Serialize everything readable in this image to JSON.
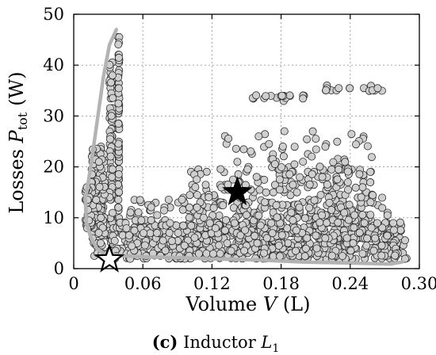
{
  "chart_data": {
    "type": "scatter",
    "xlabel_prefix": "Volume",
    "xlabel_symbol": "V",
    "xlabel_unit": "(L)",
    "ylabel_prefix": "Losses",
    "ylabel_symbol": "P",
    "ylabel_subscript": "tot",
    "ylabel_unit": "(W)",
    "xlim": [
      0,
      0.3
    ],
    "ylim": [
      0,
      50
    ],
    "xticks": [
      0,
      0.06,
      0.12,
      0.18,
      0.24,
      0.3
    ],
    "xtick_labels": [
      "0",
      "0.06",
      "0.12",
      "0.18",
      "0.24",
      "0.30"
    ],
    "yticks": [
      0,
      10,
      20,
      30,
      40,
      50
    ],
    "ytick_labels": [
      "0",
      "10",
      "20",
      "30",
      "40",
      "50"
    ],
    "grid": true,
    "caption_label": "(c)",
    "caption_text": "Inductor",
    "caption_symbol": "L",
    "caption_subscript": "1",
    "marker_color": "#cfcfcf",
    "edge_color": "#2a2a2a",
    "pareto_color": "#b3b3b3",
    "pareto_front": [
      [
        0.037,
        47
      ],
      [
        0.031,
        44
      ],
      [
        0.026,
        38
      ],
      [
        0.021,
        30
      ],
      [
        0.016,
        22
      ],
      [
        0.012,
        16
      ],
      [
        0.01,
        14
      ],
      [
        0.011,
        9
      ],
      [
        0.015,
        6
      ],
      [
        0.02,
        4
      ],
      [
        0.026,
        3
      ],
      [
        0.04,
        2.6
      ],
      [
        0.06,
        2.3
      ],
      [
        0.08,
        2.2
      ],
      [
        0.1,
        2.1
      ],
      [
        0.12,
        1.9
      ],
      [
        0.14,
        1.8
      ],
      [
        0.16,
        1.7
      ],
      [
        0.18,
        1.5
      ],
      [
        0.2,
        1.3
      ],
      [
        0.22,
        1.2
      ],
      [
        0.24,
        1.1
      ],
      [
        0.26,
        1.0
      ],
      [
        0.275,
        0.9
      ],
      [
        0.285,
        1.3
      ]
    ],
    "clusters": [
      {
        "x": [
          0.0385,
          0.0395
        ],
        "y": [
          10,
          46
        ],
        "n": 80
      },
      {
        "x": [
          0.031,
          0.034
        ],
        "y": [
          2.5,
          41
        ],
        "n": 90
      },
      {
        "x": [
          0.015,
          0.027
        ],
        "y": [
          2.5,
          24
        ],
        "n": 120
      },
      {
        "x": [
          0.01,
          0.016
        ],
        "y": [
          8,
          16
        ],
        "n": 35
      },
      {
        "x": [
          0.033,
          0.29
        ],
        "y": [
          1.8,
          9
        ],
        "n": 620
      },
      {
        "x": [
          0.045,
          0.275
        ],
        "y": [
          2,
          14
        ],
        "n": 330
      },
      {
        "x": [
          0.1,
          0.26
        ],
        "y": [
          6,
          20
        ],
        "n": 230
      },
      {
        "x": [
          0.13,
          0.26
        ],
        "y": [
          16,
          27
        ],
        "n": 70
      },
      {
        "x": [
          0.155,
          0.2
        ],
        "y": [
          33.2,
          34.2
        ],
        "n": 20
      },
      {
        "x": [
          0.21,
          0.27
        ],
        "y": [
          34.8,
          36.2
        ],
        "n": 16
      }
    ],
    "highlights": [
      {
        "name": "selected design",
        "x": 0.142,
        "y": 15.0,
        "fill": "#000000"
      },
      {
        "name": "minimum loss",
        "x": 0.031,
        "y": 1.8,
        "fill": "#ffffff"
      }
    ]
  }
}
